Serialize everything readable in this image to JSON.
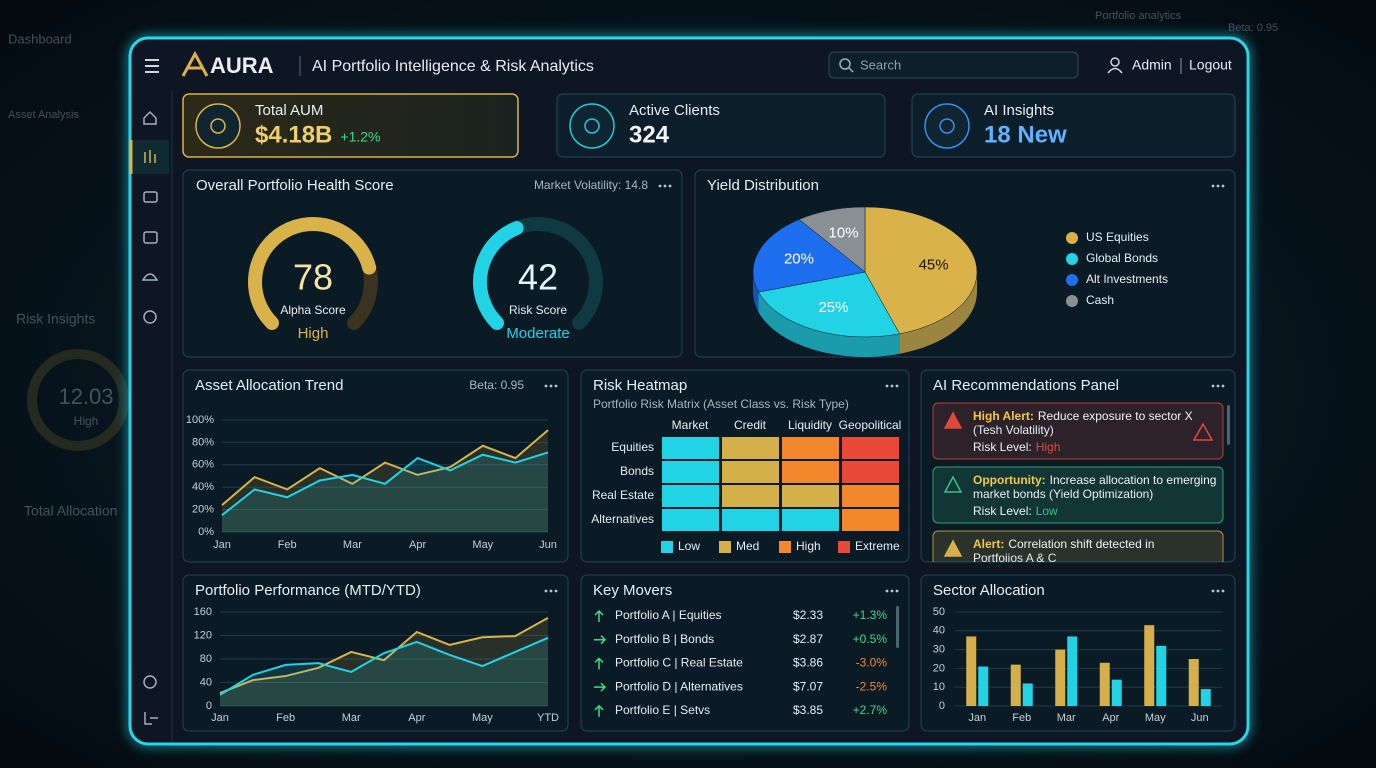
{
  "backdrop": {
    "texts": [
      "Dashboard",
      "Asset Analysis",
      "Risk Insights",
      "12.03",
      "High",
      "Total Allocation",
      "Portfolio analytics",
      "Beta: 0.95"
    ]
  },
  "header": {
    "brand": "AURA",
    "title": "AI Portfolio Intelligence & Risk Analytics",
    "search": "Search",
    "user": "Admin",
    "logout": "Logout"
  },
  "kpis": [
    {
      "label": "Total AUM",
      "value": "$4.18B",
      "change": "+1.2%",
      "color": "#d9b24a"
    },
    {
      "label": "Active Clients",
      "value": "324",
      "color": "#22c8dc"
    },
    {
      "label": "AI Insights",
      "value": "18 New",
      "color": "#3a8cf0"
    }
  ],
  "health": {
    "title": "Overall Portfolio Health Score",
    "note": "Market Volatility: 14.8",
    "gauges": [
      {
        "value": 78,
        "scale": [
          0,
          100
        ],
        "label": "Alpha Score",
        "status": "High",
        "color": "#d9b24a"
      },
      {
        "value": 42,
        "scale": [
          0,
          100
        ],
        "label": "Risk Score",
        "status": "Moderate",
        "color": "#22d3e6"
      }
    ]
  },
  "yield": {
    "type": "pie",
    "title": "Yield Distribution",
    "categories": [
      "US Equities",
      "Global Bonds",
      "Alt Investments",
      "Cash"
    ],
    "values": [
      45,
      25,
      20,
      10
    ],
    "value_labels": [
      "45%",
      "25%",
      "20%",
      "10%"
    ],
    "colors": [
      "#d9b24a",
      "#22d3e6",
      "#1e6ef0",
      "#8a8f94"
    ]
  },
  "allocation_trend": {
    "type": "line",
    "title": "Asset Allocation Trend",
    "note": "Beta: 0.95",
    "categories": [
      "Jan",
      null,
      "Feb",
      null,
      "Mar",
      null,
      "Apr",
      null,
      "May",
      null,
      "Jun"
    ],
    "series": [
      {
        "color": "#d9b24a",
        "values": [
          24,
          49,
          38,
          57,
          43,
          62,
          51,
          58,
          77,
          66,
          91
        ]
      },
      {
        "color": "#22d3e6",
        "values": [
          15,
          38,
          31,
          46,
          51,
          43,
          66,
          55,
          69,
          62,
          71
        ]
      }
    ],
    "ylim": [
      0,
      100
    ],
    "yticks": [
      {
        "value": 0,
        "label": "0%"
      },
      {
        "value": 20,
        "label": "20%"
      },
      {
        "value": 40,
        "label": "40%"
      },
      {
        "value": 60,
        "label": "60%"
      },
      {
        "value": 80,
        "label": "80%"
      },
      {
        "value": 100,
        "label": "100%"
      }
    ],
    "grid": true
  },
  "heatmap": {
    "title": "Risk Heatmap",
    "subtitle": "Portfolio Risk Matrix (Asset Class vs. Risk Type)",
    "columns": [
      "Market",
      "Credit",
      "Liquidity",
      "Geopolitical"
    ],
    "rows": [
      "Equities",
      "Bonds",
      "Real Estate",
      "Alternatives"
    ],
    "levels": [
      "Low",
      "Med",
      "High",
      "Extreme"
    ],
    "level_colors": [
      "#22d3e6",
      "#d4af4a",
      "#f2872b",
      "#e84a3a"
    ],
    "cells": [
      [
        0,
        1,
        2,
        3
      ],
      [
        0,
        1,
        2,
        3
      ],
      [
        0,
        1,
        1,
        2
      ],
      [
        0,
        0,
        0,
        2
      ]
    ]
  },
  "recommendations": {
    "title": "AI Recommendations Panel",
    "items": [
      {
        "tag": "High Alert:",
        "text": [
          "Reduce exposure to sector X",
          "(Tesh Volatility)"
        ],
        "risk_label": "Risk Level:",
        "risk": "High",
        "color": "#e0483c"
      },
      {
        "tag": "Opportunity:",
        "text": [
          "Increase allocation to emerging",
          "market bonds (Yield Optimization)"
        ],
        "risk_label": "Risk Level:",
        "risk": "Low",
        "color": "#37c08a"
      },
      {
        "tag": "Alert:",
        "text": [
          "Correlation shift detected in",
          "Portfoiios A & C"
        ],
        "color": "#d4af4a"
      }
    ]
  },
  "performance": {
    "type": "line",
    "title": "Portfolio Performance (MTD/YTD)",
    "categories": [
      "Jan",
      null,
      "Feb",
      null,
      "Mar",
      null,
      "Apr",
      null,
      "May",
      null,
      "YTD"
    ],
    "series": [
      {
        "color": "#d9b24a",
        "values": [
          22,
          44,
          51,
          65,
          92,
          78,
          126,
          104,
          117,
          119,
          150
        ]
      },
      {
        "color": "#22d3e6",
        "values": [
          19,
          53,
          70,
          73,
          58,
          90,
          109,
          87,
          68,
          92,
          116
        ]
      }
    ],
    "ylim": [
      0,
      160
    ],
    "yticks": [
      0,
      40,
      80,
      120,
      160
    ],
    "grid": true
  },
  "movers": {
    "title": "Key Movers",
    "rows": [
      {
        "name": "Portfolio A | Equities",
        "price": "$2.33",
        "change": "+1.3%"
      },
      {
        "name": "Portfolio B | Bonds",
        "price": "$2.87",
        "change": "+0.5%"
      },
      {
        "name": "Portfolio C | Real Estate",
        "price": "$3.86",
        "change": "-3.0%"
      },
      {
        "name": "Portfolio D | Alternatives",
        "price": "$7.07",
        "change": "-2.5%"
      },
      {
        "name": "Portfolio E | Setvs",
        "price": "$3.85",
        "change": "+2.7%"
      }
    ]
  },
  "sector": {
    "type": "bar",
    "title": "Sector Allocation",
    "categories": [
      "Jan",
      "Feb",
      "Mar",
      "Apr",
      "May",
      "Jun"
    ],
    "series": [
      {
        "color": "#d4af4a",
        "values": [
          37,
          22,
          30,
          23,
          43,
          25
        ]
      },
      {
        "color": "#22d3e6",
        "values": [
          21,
          12,
          37,
          14,
          32,
          9
        ]
      }
    ],
    "ylim": [
      0,
      50
    ],
    "yticks": [
      0,
      10,
      20,
      30,
      40,
      50
    ],
    "grid": true
  }
}
